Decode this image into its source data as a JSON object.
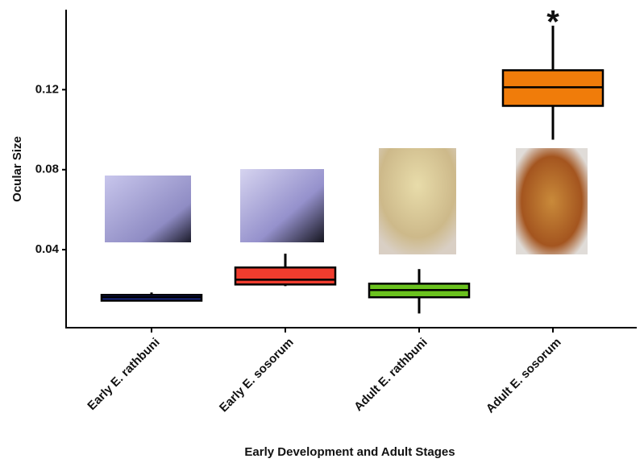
{
  "chart_data": {
    "type": "box",
    "x_label": "Early Development and Adult Stages",
    "y_label": "Ocular Size",
    "categories": [
      "Early E. rathbuni",
      "Early E. sosorum",
      "Adult E. rathbuni",
      "Adult E. sosorum"
    ],
    "boxes": [
      {
        "min": 0.0145,
        "q1": 0.0145,
        "median": 0.0162,
        "q3": 0.0174,
        "max": 0.0186,
        "color": "#1a2a8c"
      },
      {
        "min": 0.0218,
        "q1": 0.0226,
        "median": 0.025,
        "q3": 0.0311,
        "max": 0.038,
        "color": "#f03c2e"
      },
      {
        "min": 0.0081,
        "q1": 0.0162,
        "median": 0.0198,
        "q3": 0.023,
        "max": 0.0303,
        "color": "#6ac21e"
      },
      {
        "min": 0.095,
        "q1": 0.1119,
        "median": 0.1212,
        "q3": 0.1297,
        "max": 0.152,
        "color": "#f07c0a"
      }
    ],
    "annotation": "*",
    "ylim": [
      0.001,
      0.16
    ],
    "yticks": [
      0.04,
      0.08,
      0.12
    ],
    "grid": false
  }
}
